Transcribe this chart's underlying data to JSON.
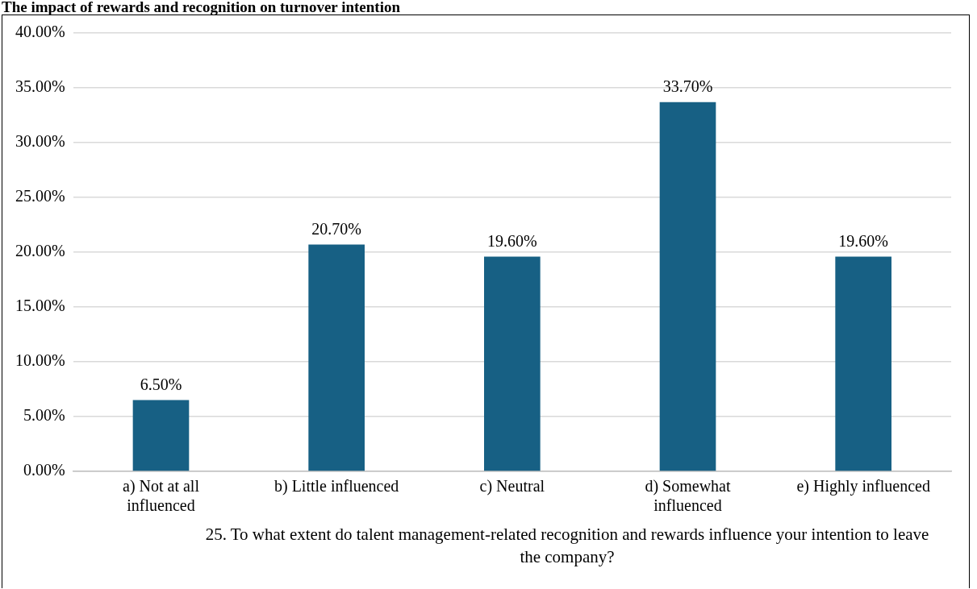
{
  "chart_data": {
    "type": "bar",
    "title": "The impact of rewards and recognition on turnover intention",
    "xlabel": "25. To what extent do talent management-related recognition and rewards influence your intention to leave the company?",
    "categories": [
      "a) Not at all influenced",
      "b) Little influenced",
      "c) Neutral",
      "d) Somewhat influenced",
      "e) Highly influenced"
    ],
    "values": [
      6.5,
      20.7,
      19.6,
      33.7,
      19.6
    ],
    "value_labels": [
      "6.50%",
      "20.70%",
      "19.60%",
      "33.70%",
      "19.60%"
    ],
    "color": "#176084",
    "ylim": [
      0,
      40
    ],
    "yticks": [
      {
        "value": 0,
        "label": "0.00%"
      },
      {
        "value": 5,
        "label": "5.00%"
      },
      {
        "value": 10,
        "label": "10.00%"
      },
      {
        "value": 15,
        "label": "15.00%"
      },
      {
        "value": 20,
        "label": "20.00%"
      },
      {
        "value": 25,
        "label": "25.00%"
      },
      {
        "value": 30,
        "label": "30.00%"
      },
      {
        "value": 35,
        "label": "35.00%"
      },
      {
        "value": 40,
        "label": "40.00%"
      }
    ],
    "grid": "y",
    "legend": false
  }
}
